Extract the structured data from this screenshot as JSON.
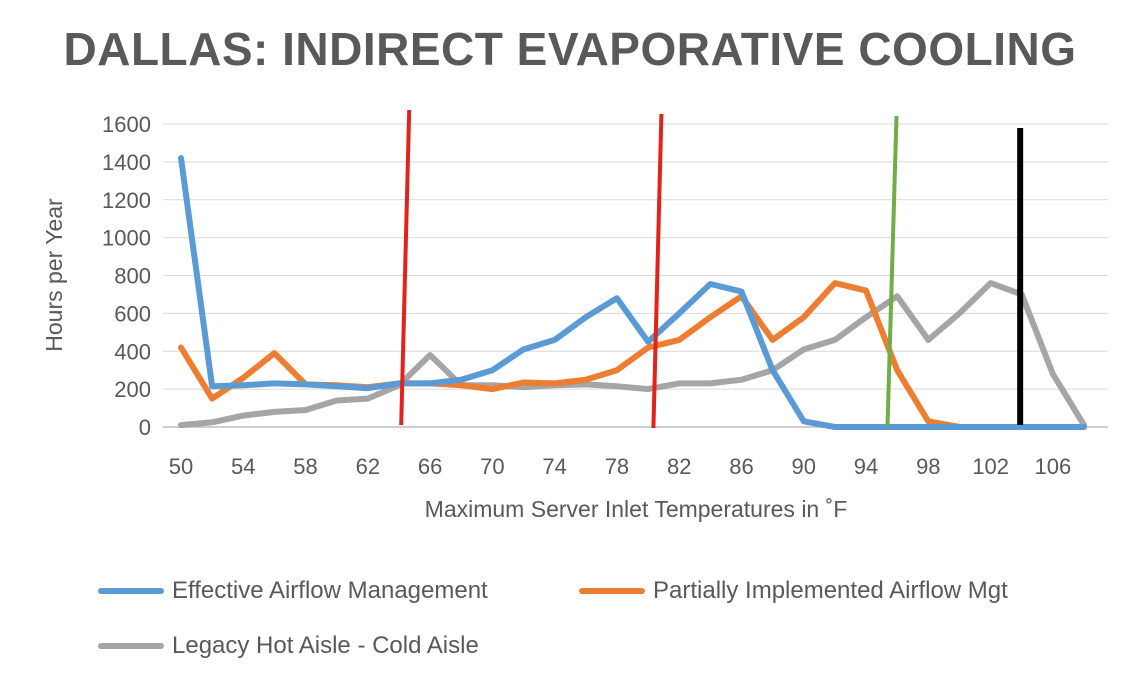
{
  "chart_data": {
    "type": "line",
    "title": "DALLAS: INDIRECT EVAPORATIVE COOLING",
    "xlabel": "Maximum Server Inlet Temperatures in ˚F",
    "ylabel": "Hours per Year",
    "ylim": [
      0,
      1600
    ],
    "yticks": [
      0,
      200,
      400,
      600,
      800,
      1000,
      1200,
      1400,
      1600
    ],
    "grid": true,
    "legend_position": "bottom",
    "x": [
      50,
      52,
      54,
      56,
      58,
      60,
      62,
      64,
      66,
      68,
      70,
      72,
      74,
      76,
      78,
      80,
      82,
      84,
      86,
      88,
      90,
      92,
      94,
      96,
      98,
      100,
      102,
      104,
      106,
      108
    ],
    "x_tick_labels": [
      "50",
      "54",
      "58",
      "62",
      "66",
      "70",
      "74",
      "78",
      "82",
      "86",
      "90",
      "94",
      "98",
      "102",
      "106"
    ],
    "series": [
      {
        "name": "Effective Airflow Management",
        "color": "#5B9BD5",
        "values": [
          1420,
          215,
          220,
          230,
          225,
          215,
          205,
          230,
          230,
          250,
          300,
          410,
          460,
          580,
          680,
          450,
          600,
          755,
          715,
          300,
          30,
          0,
          0,
          0,
          0,
          0,
          0,
          0,
          0,
          0
        ]
      },
      {
        "name": "Partially Implemented Airflow Mgt",
        "color": "#ED7D31",
        "values": [
          420,
          150,
          260,
          390,
          225,
          220,
          210,
          230,
          230,
          220,
          200,
          235,
          230,
          250,
          300,
          420,
          460,
          580,
          690,
          460,
          580,
          760,
          720,
          300,
          30,
          0,
          0,
          0,
          0,
          0
        ]
      },
      {
        "name": "Legacy Hot Aisle - Cold Aisle",
        "color": "#A5A5A5",
        "values": [
          10,
          25,
          60,
          80,
          90,
          140,
          150,
          220,
          380,
          220,
          220,
          210,
          220,
          225,
          215,
          200,
          230,
          230,
          250,
          300,
          410,
          460,
          580,
          690,
          460,
          600,
          760,
          700,
          280,
          10
        ]
      }
    ],
    "vertical_markers": [
      {
        "x": 64.4,
        "color": "#E3231B"
      },
      {
        "x": 80.6,
        "color": "#E3231B"
      },
      {
        "x": 95.7,
        "color": "#70AD47"
      },
      {
        "x": 103.9,
        "color": "#000000"
      }
    ]
  }
}
